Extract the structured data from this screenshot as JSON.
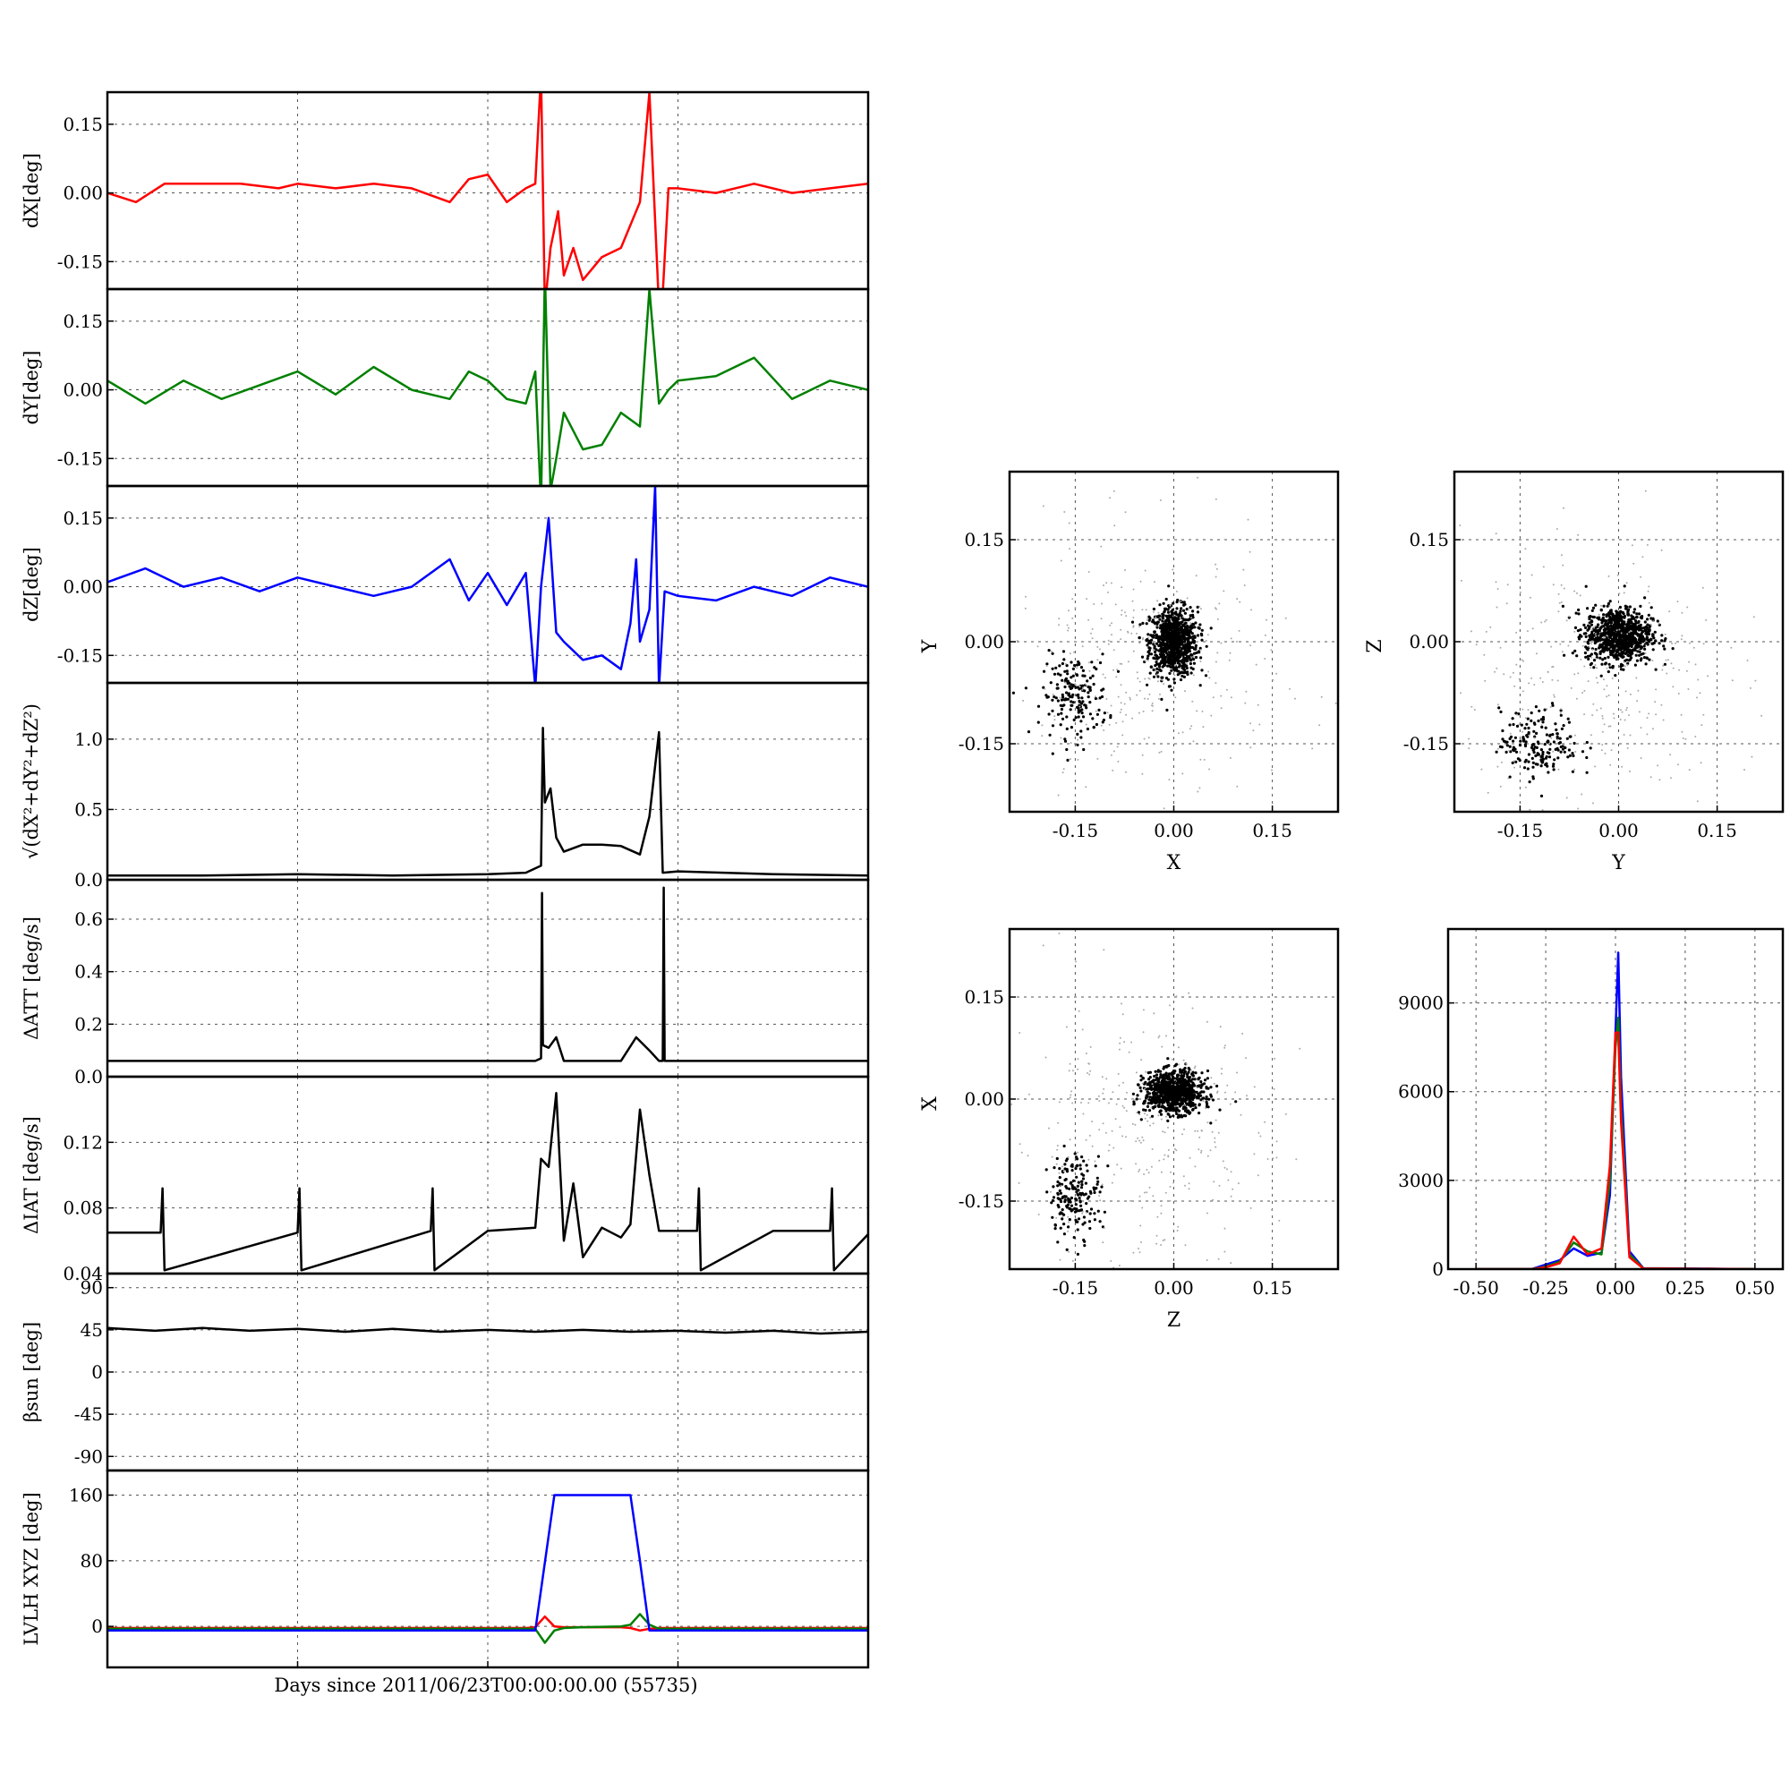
{
  "figure": {
    "xlabel": "Days since 2011/06/23T00:00:00.00 (55735)"
  },
  "colors": {
    "x": "#ff0000",
    "y": "#008000",
    "z": "#0000ff",
    "k": "#000000",
    "grid": "#555555"
  },
  "chart_data": [
    {
      "type": "line",
      "id": "dx",
      "ylabel": "dX[deg]",
      "xlim": [
        0,
        4
      ],
      "ylim": [
        -0.21,
        0.22
      ],
      "yticks": [
        "0.15",
        "0.00",
        "-0.15"
      ],
      "ytick_values": [
        0.15,
        0.0,
        -0.15
      ],
      "series": [
        {
          "color": "x",
          "x": [
            0,
            0.15,
            0.3,
            0.5,
            0.7,
            0.9,
            1.0,
            1.2,
            1.4,
            1.6,
            1.8,
            1.9,
            2.0,
            2.1,
            2.2,
            2.25,
            2.28,
            2.3,
            2.33,
            2.37,
            2.4,
            2.45,
            2.5,
            2.6,
            2.7,
            2.8,
            2.85,
            2.9,
            2.92,
            2.95,
            3.0,
            3.2,
            3.4,
            3.6,
            3.8,
            4.0
          ],
          "y": [
            0.0,
            -0.02,
            0.02,
            0.02,
            0.02,
            0.01,
            0.02,
            0.01,
            0.02,
            0.01,
            -0.02,
            0.03,
            0.04,
            -0.02,
            0.01,
            0.02,
            0.26,
            -0.25,
            -0.12,
            -0.04,
            -0.18,
            -0.12,
            -0.19,
            -0.14,
            -0.12,
            -0.02,
            0.22,
            -0.25,
            -0.22,
            0.01,
            0.01,
            0.0,
            0.02,
            0.0,
            0.01,
            0.02
          ]
        }
      ]
    },
    {
      "type": "line",
      "id": "dy",
      "ylabel": "dY[deg]",
      "xlim": [
        0,
        4
      ],
      "ylim": [
        -0.21,
        0.22
      ],
      "yticks": [
        "0.15",
        "0.00",
        "-0.15"
      ],
      "ytick_values": [
        0.15,
        0.0,
        -0.15
      ],
      "series": [
        {
          "color": "y",
          "x": [
            0,
            0.2,
            0.4,
            0.6,
            0.8,
            1.0,
            1.2,
            1.4,
            1.6,
            1.8,
            1.9,
            2.0,
            2.1,
            2.2,
            2.25,
            2.28,
            2.3,
            2.33,
            2.36,
            2.4,
            2.5,
            2.6,
            2.7,
            2.8,
            2.85,
            2.9,
            2.95,
            3.0,
            3.2,
            3.4,
            3.6,
            3.8,
            4.0
          ],
          "y": [
            0.02,
            -0.03,
            0.02,
            -0.02,
            0.01,
            0.04,
            -0.01,
            0.05,
            0.0,
            -0.02,
            0.04,
            0.02,
            -0.02,
            -0.03,
            0.04,
            -0.25,
            0.26,
            -0.22,
            -0.15,
            -0.05,
            -0.13,
            -0.12,
            -0.05,
            -0.08,
            0.22,
            -0.03,
            0.0,
            0.02,
            0.03,
            0.07,
            -0.02,
            0.02,
            0.0
          ]
        }
      ]
    },
    {
      "type": "line",
      "id": "dz",
      "ylabel": "dZ[deg]",
      "xlim": [
        0,
        4
      ],
      "ylim": [
        -0.21,
        0.22
      ],
      "yticks": [
        "0.15",
        "0.00",
        "-0.15"
      ],
      "ytick_values": [
        0.15,
        0.0,
        -0.15
      ],
      "series": [
        {
          "color": "z",
          "x": [
            0,
            0.2,
            0.4,
            0.6,
            0.8,
            1.0,
            1.2,
            1.4,
            1.6,
            1.8,
            1.9,
            2.0,
            2.1,
            2.2,
            2.25,
            2.28,
            2.32,
            2.36,
            2.4,
            2.5,
            2.6,
            2.7,
            2.75,
            2.78,
            2.8,
            2.85,
            2.88,
            2.9,
            2.93,
            3.0,
            3.2,
            3.4,
            3.6,
            3.8,
            4.0
          ],
          "y": [
            0.01,
            0.04,
            0.0,
            0.02,
            -0.01,
            0.02,
            0.0,
            -0.02,
            0.0,
            0.06,
            -0.03,
            0.03,
            -0.04,
            0.03,
            -0.22,
            0.0,
            0.15,
            -0.1,
            -0.12,
            -0.16,
            -0.15,
            -0.18,
            -0.08,
            0.06,
            -0.12,
            -0.05,
            0.22,
            -0.22,
            -0.01,
            -0.02,
            -0.03,
            0.0,
            -0.02,
            0.02,
            0.0
          ]
        }
      ]
    },
    {
      "type": "line",
      "id": "norm",
      "ylabel": "√(dX²+dY²+dZ²)",
      "xlim": [
        0,
        4
      ],
      "ylim": [
        0,
        1.4
      ],
      "yticks": [
        "1.0",
        "0.5",
        "0.0"
      ],
      "ytick_values": [
        1.0,
        0.5,
        0.0
      ],
      "series": [
        {
          "color": "k",
          "x": [
            0,
            0.5,
            1.0,
            1.5,
            2.0,
            2.2,
            2.28,
            2.29,
            2.3,
            2.33,
            2.36,
            2.4,
            2.5,
            2.6,
            2.7,
            2.8,
            2.85,
            2.9,
            2.92,
            3.0,
            3.5,
            4.0
          ],
          "y": [
            0.03,
            0.03,
            0.04,
            0.03,
            0.04,
            0.05,
            0.1,
            1.08,
            0.55,
            0.65,
            0.3,
            0.2,
            0.25,
            0.25,
            0.24,
            0.18,
            0.45,
            1.05,
            0.05,
            0.06,
            0.04,
            0.03
          ]
        }
      ]
    },
    {
      "type": "line",
      "id": "datt",
      "ylabel": "ΔATT [deg/s]",
      "xlim": [
        0,
        4
      ],
      "ylim": [
        0,
        0.75
      ],
      "yticks": [
        "0.6",
        "0.4",
        "0.2",
        "0.0"
      ],
      "ytick_values": [
        0.6,
        0.4,
        0.2,
        0.0
      ],
      "series": [
        {
          "color": "k",
          "x": [
            0,
            1.0,
            2.0,
            2.25,
            2.28,
            2.285,
            2.29,
            2.32,
            2.36,
            2.4,
            2.5,
            2.7,
            2.78,
            2.85,
            2.9,
            2.92,
            2.925,
            2.93,
            3.0,
            4.0
          ],
          "y": [
            0.06,
            0.06,
            0.06,
            0.06,
            0.07,
            0.7,
            0.12,
            0.11,
            0.15,
            0.06,
            0.06,
            0.06,
            0.15,
            0.1,
            0.06,
            0.06,
            0.72,
            0.06,
            0.06,
            0.06
          ]
        }
      ]
    },
    {
      "type": "line",
      "id": "diat",
      "ylabel": "ΔIAT [deg/s]",
      "xlim": [
        0,
        4
      ],
      "ylim": [
        0.04,
        0.16
      ],
      "yticks": [
        "0.12",
        "0.08",
        "0.04"
      ],
      "ytick_values": [
        0.12,
        0.08,
        0.04
      ],
      "series": [
        {
          "color": "k",
          "x": [
            0,
            0.28,
            0.29,
            0.3,
            1.0,
            1.01,
            1.02,
            1.7,
            1.71,
            1.72,
            2.0,
            2.25,
            2.28,
            2.32,
            2.36,
            2.4,
            2.45,
            2.5,
            2.6,
            2.7,
            2.75,
            2.8,
            2.85,
            2.9,
            3.1,
            3.11,
            3.12,
            3.5,
            3.8,
            3.81,
            3.82,
            4.0
          ],
          "y": [
            0.065,
            0.065,
            0.092,
            0.042,
            0.065,
            0.092,
            0.042,
            0.066,
            0.092,
            0.042,
            0.066,
            0.068,
            0.11,
            0.105,
            0.15,
            0.06,
            0.095,
            0.05,
            0.068,
            0.062,
            0.07,
            0.14,
            0.1,
            0.066,
            0.066,
            0.092,
            0.042,
            0.066,
            0.066,
            0.092,
            0.042,
            0.064
          ]
        }
      ]
    },
    {
      "type": "line",
      "id": "beta",
      "ylabel": "βsun [deg]",
      "xlim": [
        0,
        4
      ],
      "ylim": [
        -105,
        105
      ],
      "yticks": [
        "90",
        "45",
        "0",
        "-45",
        "-90"
      ],
      "ytick_values": [
        90,
        45,
        0,
        -45,
        -90
      ],
      "series": [
        {
          "color": "k",
          "x": [
            0,
            0.25,
            0.5,
            0.75,
            1.0,
            1.25,
            1.5,
            1.75,
            2.0,
            2.25,
            2.5,
            2.75,
            3.0,
            3.25,
            3.5,
            3.75,
            4.0
          ],
          "y": [
            47,
            44,
            47,
            44,
            46,
            43,
            46,
            43,
            45,
            43,
            45,
            43,
            44,
            42,
            44,
            41,
            43
          ]
        }
      ]
    },
    {
      "type": "line",
      "id": "lvlh",
      "ylabel": "LVLH XYZ [deg]",
      "xlim": [
        0,
        4
      ],
      "ylim": [
        -50,
        190
      ],
      "yticks": [
        "160",
        "80",
        "0"
      ],
      "ytick_values": [
        160,
        80,
        0
      ],
      "series": [
        {
          "color": "x",
          "x": [
            0,
            2.2,
            2.25,
            2.3,
            2.35,
            2.4,
            2.5,
            2.7,
            2.75,
            2.8,
            2.85,
            2.9,
            4.0
          ],
          "y": [
            -2,
            -2,
            -1,
            12,
            0,
            -1,
            -1,
            -1,
            -2,
            -5,
            -3,
            -2,
            -2
          ]
        },
        {
          "color": "y",
          "x": [
            0,
            2.2,
            2.25,
            2.3,
            2.35,
            2.4,
            2.5,
            2.7,
            2.75,
            2.8,
            2.85,
            2.9,
            4.0
          ],
          "y": [
            -3,
            -3,
            -3,
            -20,
            -5,
            -2,
            -1,
            0,
            2,
            15,
            2,
            -3,
            -3
          ]
        },
        {
          "color": "z",
          "x": [
            0,
            2.2,
            2.25,
            2.35,
            2.4,
            2.6,
            2.75,
            2.8,
            2.85,
            2.9,
            4.0
          ],
          "y": [
            -5,
            -5,
            -5,
            160,
            160,
            160,
            160,
            80,
            -5,
            -5,
            -5
          ]
        }
      ]
    },
    {
      "type": "scatter",
      "id": "xy",
      "xlabel": "X",
      "ylabel": "Y",
      "xlim": [
        -0.25,
        0.25
      ],
      "ylim": [
        -0.25,
        0.25
      ],
      "ticks": [
        "-0.15",
        "0.00",
        "0.15"
      ],
      "tick_values": [
        -0.15,
        0.0,
        0.15
      ],
      "clusters": [
        {
          "cx": 0.0,
          "cy": 0.0,
          "sx": 0.018,
          "sy": 0.025,
          "n": 900,
          "shade": "dark"
        },
        {
          "cx": -0.15,
          "cy": -0.08,
          "sx": 0.025,
          "sy": 0.03,
          "n": 180,
          "shade": "dark"
        },
        {
          "cx": -0.05,
          "cy": -0.05,
          "sx": 0.1,
          "sy": 0.1,
          "n": 320,
          "shade": "light"
        }
      ]
    },
    {
      "type": "scatter",
      "id": "yz",
      "xlabel": "Y",
      "ylabel": "Z",
      "xlim": [
        -0.25,
        0.25
      ],
      "ylim": [
        -0.25,
        0.25
      ],
      "ticks": [
        "-0.15",
        "0.00",
        "0.15"
      ],
      "tick_values": [
        -0.15,
        0.0,
        0.15
      ],
      "clusters": [
        {
          "cx": 0.0,
          "cy": 0.01,
          "sx": 0.025,
          "sy": 0.02,
          "n": 900,
          "shade": "dark"
        },
        {
          "cx": -0.12,
          "cy": -0.15,
          "sx": 0.03,
          "sy": 0.025,
          "n": 180,
          "shade": "dark"
        },
        {
          "cx": -0.04,
          "cy": -0.05,
          "sx": 0.1,
          "sy": 0.1,
          "n": 320,
          "shade": "light"
        }
      ]
    },
    {
      "type": "scatter",
      "id": "zx",
      "xlabel": "Z",
      "ylabel": "X",
      "xlim": [
        -0.25,
        0.25
      ],
      "ylim": [
        -0.25,
        0.25
      ],
      "ticks": [
        "-0.15",
        "0.00",
        "0.15"
      ],
      "tick_values": [
        -0.15,
        0.0,
        0.15
      ],
      "clusters": [
        {
          "cx": 0.0,
          "cy": 0.01,
          "sx": 0.022,
          "sy": 0.015,
          "n": 900,
          "shade": "dark"
        },
        {
          "cx": -0.15,
          "cy": -0.14,
          "sx": 0.02,
          "sy": 0.03,
          "n": 180,
          "shade": "dark"
        },
        {
          "cx": -0.05,
          "cy": -0.06,
          "sx": 0.1,
          "sy": 0.1,
          "n": 320,
          "shade": "light"
        }
      ]
    },
    {
      "type": "line",
      "id": "hist",
      "xlim": [
        -0.6,
        0.6
      ],
      "ylim": [
        0,
        11500
      ],
      "xticks": [
        "-0.50",
        "-0.25",
        "0.00",
        "0.25",
        "0.50"
      ],
      "xtick_values": [
        -0.5,
        -0.25,
        0.0,
        0.25,
        0.5
      ],
      "yticks": [
        "9000",
        "6000",
        "3000",
        "0"
      ],
      "ytick_values": [
        9000,
        6000,
        3000,
        0
      ],
      "series": [
        {
          "color": "z",
          "x": [
            -0.5,
            -0.3,
            -0.25,
            -0.2,
            -0.15,
            -0.1,
            -0.05,
            -0.02,
            0.0,
            0.01,
            0.02,
            0.05,
            0.1,
            0.5
          ],
          "y": [
            0,
            0,
            150,
            300,
            700,
            450,
            550,
            2500,
            8000,
            10700,
            6500,
            600,
            30,
            0
          ]
        },
        {
          "color": "y",
          "x": [
            -0.5,
            -0.3,
            -0.25,
            -0.2,
            -0.15,
            -0.1,
            -0.05,
            -0.02,
            0.0,
            0.01,
            0.02,
            0.05,
            0.1,
            0.5
          ],
          "y": [
            0,
            0,
            80,
            250,
            900,
            600,
            500,
            3000,
            7500,
            8500,
            5500,
            500,
            20,
            0
          ]
        },
        {
          "color": "x",
          "x": [
            -0.5,
            -0.3,
            -0.25,
            -0.2,
            -0.15,
            -0.1,
            -0.05,
            -0.02,
            0.0,
            0.01,
            0.02,
            0.05,
            0.1,
            0.5
          ],
          "y": [
            0,
            0,
            60,
            200,
            1100,
            500,
            700,
            3500,
            8000,
            8000,
            5000,
            400,
            20,
            0
          ]
        }
      ]
    }
  ]
}
